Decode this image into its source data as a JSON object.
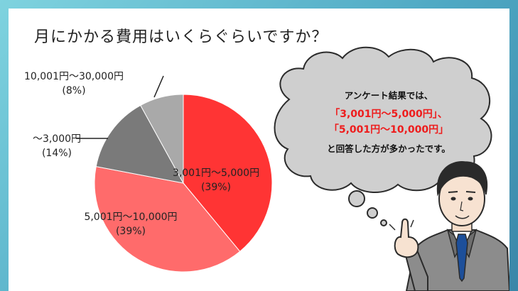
{
  "title": "月にかかる費用はいくらぐらいですか？",
  "chart_data": {
    "type": "pie",
    "slices": [
      {
        "label": "3,001円〜5,000円",
        "pct_label": "(39%)",
        "value": 39,
        "color": "#ff3434"
      },
      {
        "label": "5,001円〜10,000円",
        "pct_label": "(39%)",
        "value": 39,
        "color": "#ff6b6b"
      },
      {
        "label": "〜3,000円",
        "pct_label": "(14%)",
        "value": 14,
        "color": "#7a7a7a"
      },
      {
        "label": "10,001円〜30,000円",
        "pct_label": "(8%)",
        "value": 8,
        "color": "#a9a9a9"
      }
    ]
  },
  "bubble": {
    "line1": "アンケート結果では、",
    "line2": "「3,001円〜5,000円」、",
    "line3": "「5,001円〜10,000円」",
    "line4": "と回答した方が多かったです。",
    "highlight_color": "#ee1c1c"
  },
  "icons": {
    "character": "businessman-pointing-icon"
  }
}
